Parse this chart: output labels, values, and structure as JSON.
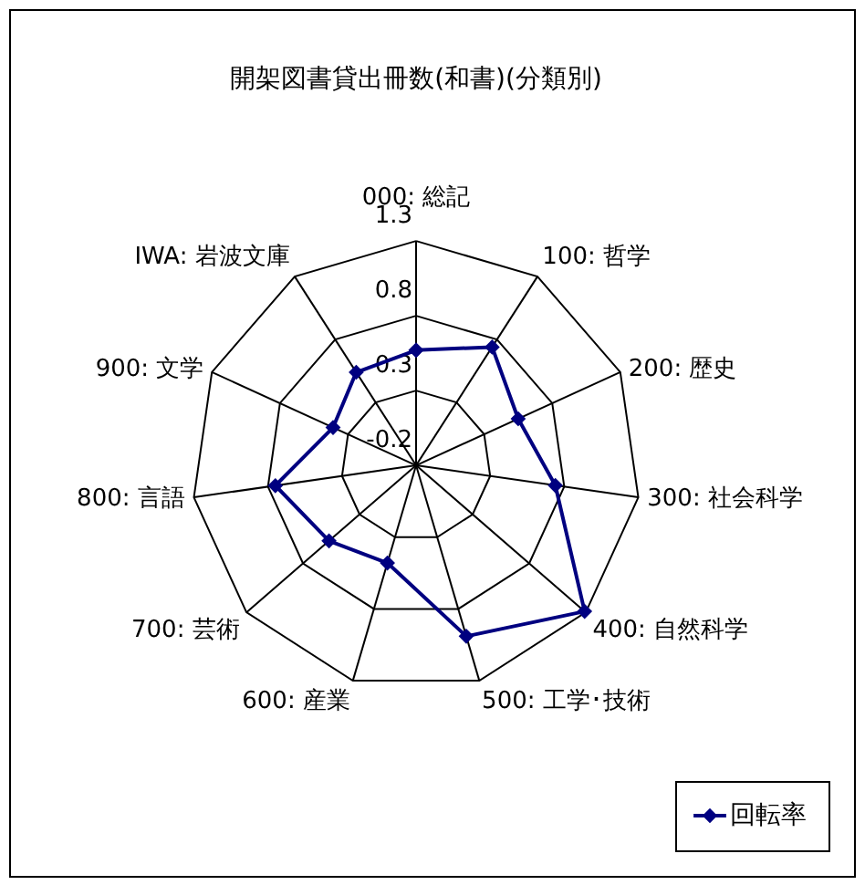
{
  "chart_data": {
    "type": "radar",
    "title": "開架図書貸出冊数(和書)(分類別)",
    "categories": [
      "000: 総記",
      "100: 哲学",
      "200: 歴史",
      "300: 社会科学",
      "400: 自然科学",
      "500: 工学･技術",
      "600: 産業",
      "700: 芸術",
      "800: 言語",
      "900: 文学",
      "IWA: 岩波文庫"
    ],
    "series": [
      {
        "name": "回転率",
        "color": "#000080",
        "values": [
          0.57,
          0.74,
          0.55,
          0.74,
          1.29,
          0.99,
          0.48,
          0.57,
          0.75,
          0.41,
          0.54
        ]
      }
    ],
    "ylim": [
      -0.2,
      1.3
    ],
    "yticks": [
      -0.2,
      0.3,
      0.8,
      1.3
    ],
    "marker": "diamond",
    "legend": "bottom right"
  }
}
